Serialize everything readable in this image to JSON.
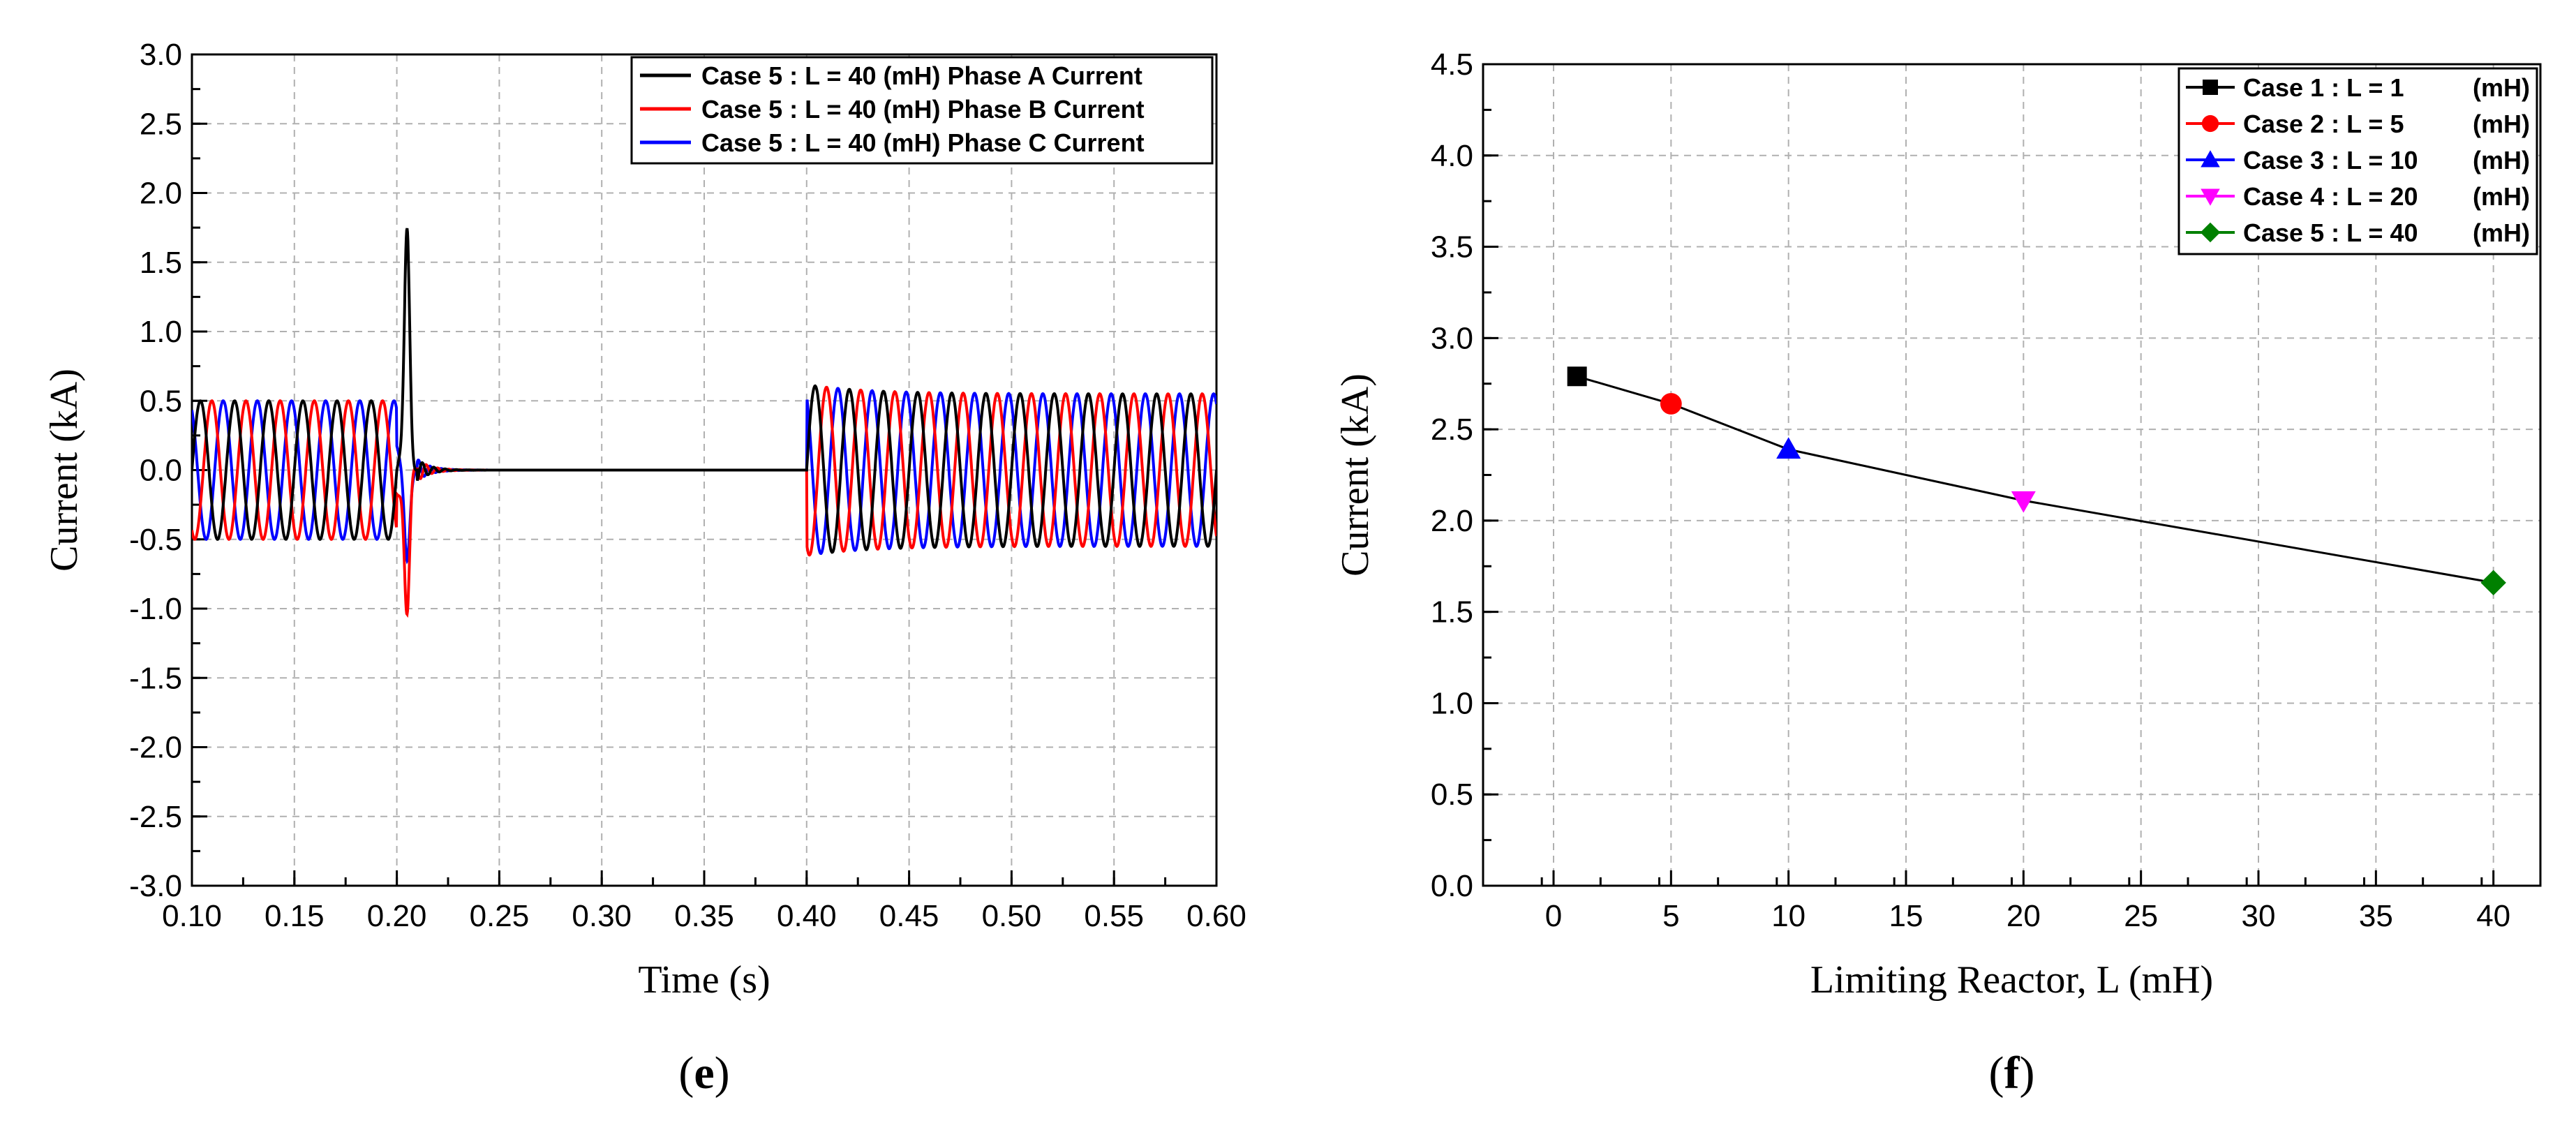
{
  "chart_data": [
    {
      "type": "line",
      "panel_label": "(e)",
      "xlabel": "Time (s)",
      "ylabel": "Current (kA)",
      "xlim": [
        0.1,
        0.6
      ],
      "ylim": [
        -3.0,
        3.0
      ],
      "x_ticks": [
        "0.10",
        "0.15",
        "0.20",
        "0.25",
        "0.30",
        "0.35",
        "0.40",
        "0.45",
        "0.50",
        "0.55",
        "0.60"
      ],
      "y_ticks": [
        "3.0",
        "2.5",
        "2.0",
        "1.5",
        "1.0",
        "0.5",
        "0.0",
        "-0.5",
        "-1.0",
        "-1.5",
        "-2.0",
        "-2.5",
        "-3.0"
      ],
      "grid": true,
      "legend_position": "top-right",
      "frequency_hz": 60,
      "series": [
        {
          "name": "Case 5 : L = 40 (mH) Phase A Current",
          "color": "#000000",
          "amplitude": 0.5,
          "phase_deg": 0,
          "peak_at_fault": 1.65
        },
        {
          "name": "Case 5 : L = 40 (mH) Phase B Current",
          "color": "#ff0000",
          "amplitude": 0.5,
          "phase_deg": -120,
          "peak_at_fault": -1.02
        },
        {
          "name": "Case 5 : L = 40 (mH) Phase C Current",
          "color": "#0000ff",
          "amplitude": 0.5,
          "phase_deg": 120,
          "peak_at_fault": -0.58
        }
      ],
      "fault_start": 0.2,
      "interruption": [
        0.21,
        0.4
      ],
      "recovery_amplitude": 0.55
    },
    {
      "type": "line",
      "panel_label": "(f)",
      "xlabel": "Limiting Reactor, L (mH)",
      "ylabel": "Current (kA)",
      "xlim": [
        -3,
        42
      ],
      "ylim": [
        0.0,
        4.5
      ],
      "x_ticks": [
        "0",
        "5",
        "10",
        "15",
        "20",
        "25",
        "30",
        "35",
        "40"
      ],
      "y_ticks": [
        "4.5",
        "4.0",
        "3.5",
        "3.0",
        "2.5",
        "2.0",
        "1.5",
        "1.0",
        "0.5",
        "0.0"
      ],
      "grid": true,
      "legend_position": "top-right",
      "x": [
        1,
        5,
        10,
        20,
        40
      ],
      "y": [
        2.79,
        2.64,
        2.39,
        2.11,
        1.66
      ],
      "points": [
        {
          "name": "Case 1 : L = 1   (mH)",
          "legend_case": "Case 1 : L = 1",
          "legend_unit": "(mH)",
          "x": 1,
          "y": 2.79,
          "color": "#000000",
          "marker": "square"
        },
        {
          "name": "Case 2 : L = 5   (mH)",
          "legend_case": "Case 2 : L = 5",
          "legend_unit": "(mH)",
          "x": 5,
          "y": 2.64,
          "color": "#ff0000",
          "marker": "circle"
        },
        {
          "name": "Case 3 : L = 10 (mH)",
          "legend_case": "Case 3 : L = 10",
          "legend_unit": "(mH)",
          "x": 10,
          "y": 2.39,
          "color": "#0000ff",
          "marker": "triangle-up"
        },
        {
          "name": "Case 4 : L = 20 (mH)",
          "legend_case": "Case 4 : L = 20",
          "legend_unit": "(mH)",
          "x": 20,
          "y": 2.11,
          "color": "#ff00ff",
          "marker": "triangle-down"
        },
        {
          "name": "Case 5 : L = 40 (mH)",
          "legend_case": "Case 5 : L = 40",
          "legend_unit": "(mH)",
          "x": 40,
          "y": 1.66,
          "color": "#008000",
          "marker": "diamond"
        }
      ]
    }
  ]
}
